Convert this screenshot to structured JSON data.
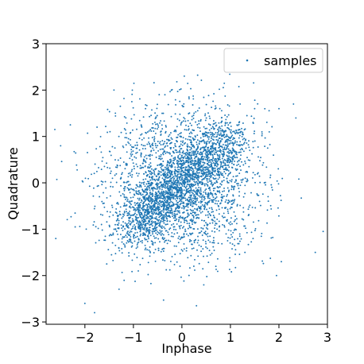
{
  "chart_data": {
    "type": "scatter",
    "title": "",
    "xlabel": "Inphase",
    "ylabel": "Quadrature",
    "xlim": [
      -2.8,
      3.0
    ],
    "ylim": [
      -3.05,
      3.0
    ],
    "x_ticks": [
      "−2",
      "−1",
      "0",
      "1",
      "2",
      "3"
    ],
    "y_ticks": [
      "−3",
      "−2",
      "−1",
      "0",
      "1",
      "2",
      "3"
    ],
    "x_tick_values": [
      -2,
      -1,
      0,
      1,
      2,
      3
    ],
    "y_tick_values": [
      -3,
      -2,
      -1,
      0,
      1,
      2,
      3
    ],
    "grid": false,
    "legend": {
      "placement": "top-right",
      "entries": [
        "samples"
      ]
    },
    "marker_color": "#1f77b4",
    "distribution_note": "about 4000 points concentrated along y≈x between (−1,−1) and (1,1), wider cloud spread to about ±2.5",
    "series": [
      {
        "name": "samples",
        "color": "#1f77b4",
        "x": [
          -2.62,
          -2.6,
          -2.5,
          -2.3,
          -2.2,
          -2.0,
          -1.8,
          -1.75,
          -1.7,
          -1.55,
          -1.4,
          -1.3,
          -1.2,
          -1.1,
          -1.0,
          -0.9,
          -0.8,
          -0.75,
          -0.6,
          -0.55,
          -0.5,
          -0.45,
          -0.4,
          -0.35,
          -0.3,
          -0.2,
          -0.1,
          0.0,
          0.05,
          0.1,
          0.2,
          0.25,
          0.3,
          0.4,
          0.45,
          0.5,
          0.6,
          0.7,
          0.75,
          0.8,
          0.9,
          1.0,
          1.1,
          1.2,
          1.3,
          1.4,
          1.5,
          1.6,
          1.8,
          1.95,
          2.0,
          2.05,
          2.3,
          2.35,
          2.4,
          2.75
        ],
        "y": [
          1.15,
          -1.2,
          0.8,
          1.25,
          -0.95,
          -2.6,
          -2.8,
          1.2,
          -0.3,
          -1.75,
          2.0,
          1.0,
          -0.5,
          0.2,
          -0.7,
          -1.9,
          -0.6,
          1.6,
          -0.4,
          0.3,
          -0.3,
          -1.1,
          0.1,
          1.9,
          -0.2,
          -0.1,
          0.0,
          0.1,
          2.3,
          0.2,
          0.4,
          1.5,
          0.3,
          0.5,
          -2.2,
          0.6,
          0.4,
          -1.8,
          0.5,
          0.9,
          0.2,
          1.3,
          -0.8,
          1.7,
          -1.5,
          0.7,
          1.6,
          -0.4,
          1.1,
          -2.0,
          1.6,
          -1.7,
          1.7,
          1.4,
          2.4,
          -1.5
        ]
      }
    ]
  }
}
